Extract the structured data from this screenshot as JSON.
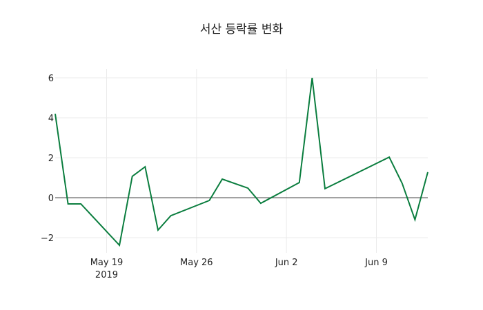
{
  "chart_data": {
    "type": "line",
    "title": "서산 등락률 변화",
    "xlabel": "",
    "ylabel": "",
    "x": [
      "2019-05-15",
      "2019-05-16",
      "2019-05-17",
      "2019-05-20",
      "2019-05-21",
      "2019-05-22",
      "2019-05-23",
      "2019-05-24",
      "2019-05-27",
      "2019-05-28",
      "2019-05-30",
      "2019-05-31",
      "2019-06-03",
      "2019-06-04",
      "2019-06-05",
      "2019-06-10",
      "2019-06-11",
      "2019-06-12",
      "2019-06-13"
    ],
    "series": [
      {
        "name": "등락률",
        "color": "#0a7d3e",
        "values": [
          4.2,
          -0.31,
          -0.31,
          -2.38,
          1.07,
          1.55,
          -1.62,
          -0.9,
          -0.14,
          0.93,
          0.48,
          -0.28,
          0.76,
          6.0,
          0.45,
          2.03,
          0.72,
          -1.1,
          1.28
        ]
      }
    ],
    "ylim": [
      -2.76,
      6.45
    ],
    "xlim": [
      "2019-05-15",
      "2019-06-13"
    ],
    "yticks": [
      -2,
      0,
      2,
      4,
      6
    ],
    "ytick_labels": [
      "−2",
      "0",
      "2",
      "4",
      "6"
    ],
    "xticks": [
      "2019-05-19",
      "2019-05-26",
      "2019-06-02",
      "2019-06-09"
    ],
    "xtick_labels": [
      [
        "May 19",
        "2019"
      ],
      [
        "May 26"
      ],
      [
        "Jun 2"
      ],
      [
        "Jun 9"
      ]
    ],
    "grid": true,
    "zeroline": true,
    "legend": "none"
  }
}
